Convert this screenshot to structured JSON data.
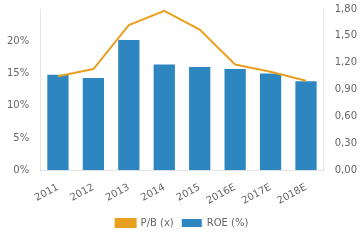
{
  "chart_data": {
    "type": "bar",
    "categories": [
      "2011",
      "2012",
      "2013",
      "2014",
      "2015",
      "2016E",
      "2017E",
      "2018E"
    ],
    "series": [
      {
        "name": "ROE (%)",
        "type": "bar",
        "color": "#2E86C1",
        "values": [
          0.148,
          0.143,
          0.202,
          0.164,
          0.16,
          0.157,
          0.15,
          0.138
        ]
      },
      {
        "name": "P/B (x)",
        "type": "line",
        "color": "#E8A020",
        "axis": "y2",
        "values": [
          1.05,
          1.13,
          1.62,
          1.78,
          1.57,
          1.18,
          1.1,
          1.0
        ]
      }
    ],
    "ylim": [
      0,
      0.25
    ],
    "yticks": [
      {
        "value": 0,
        "label": "0%"
      },
      {
        "value": 0.05,
        "label": "5%"
      },
      {
        "value": 0.1,
        "label": "10%"
      },
      {
        "value": 0.15,
        "label": "15%"
      },
      {
        "value": 0.2,
        "label": "20%"
      }
    ],
    "y2lim": [
      0,
      1.8
    ],
    "y2ticks": [
      {
        "value": 0.0,
        "label": "0,00"
      },
      {
        "value": 0.3,
        "label": "0,30"
      },
      {
        "value": 0.6,
        "label": "0,60"
      },
      {
        "value": 0.9,
        "label": "0,90"
      },
      {
        "value": 1.2,
        "label": "1,20"
      },
      {
        "value": 1.5,
        "label": "1,50"
      },
      {
        "value": 1.8,
        "label": "1,80"
      }
    ],
    "grid": false,
    "legend": "bottom"
  }
}
